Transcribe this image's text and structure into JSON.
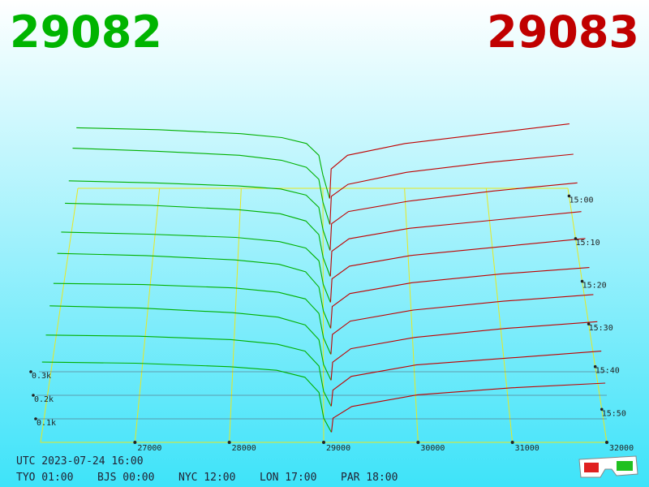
{
  "header": {
    "bid": "29082",
    "ask": "29083"
  },
  "chart_data": {
    "type": "depth3d",
    "bid_color": "#00b000",
    "ask_color": "#c00000",
    "axis_color": "#e8e820",
    "xlim": [
      26000,
      32000
    ],
    "xticks": [
      27000,
      28000,
      29000,
      30000,
      31000,
      32000
    ],
    "depth_ticks": [
      {
        "value": 100,
        "label": "0.1k"
      },
      {
        "value": 200,
        "label": "0.2k"
      },
      {
        "value": 300,
        "label": "0.3k"
      }
    ],
    "time_labels": [
      "15:00",
      "15:10",
      "15:20",
      "15:30",
      "15:40",
      "15:50"
    ],
    "bid_prices": [
      26000,
      27000,
      28000,
      28500,
      28800,
      28950,
      29000,
      29082
    ],
    "ask_prices": [
      29083,
      29100,
      29300,
      30000,
      31000,
      32000
    ],
    "snapshots": [
      {
        "bids": [
          360,
          350,
          330,
          310,
          280,
          220,
          120,
          0
        ],
        "asks": [
          0,
          150,
          220,
          280,
          330,
          380
        ]
      },
      {
        "bids": [
          380,
          365,
          345,
          320,
          285,
          225,
          110,
          0
        ],
        "asks": [
          0,
          140,
          200,
          260,
          310,
          350
        ]
      },
      {
        "bids": [
          340,
          330,
          315,
          300,
          270,
          210,
          100,
          0
        ],
        "asks": [
          0,
          130,
          190,
          240,
          290,
          330
        ]
      },
      {
        "bids": [
          350,
          340,
          320,
          300,
          265,
          200,
          90,
          0
        ],
        "asks": [
          0,
          120,
          180,
          230,
          270,
          310
        ]
      },
      {
        "bids": [
          330,
          320,
          305,
          285,
          255,
          195,
          85,
          0
        ],
        "asks": [
          0,
          110,
          170,
          220,
          260,
          300
        ]
      },
      {
        "bids": [
          345,
          335,
          315,
          295,
          260,
          190,
          80,
          0
        ],
        "asks": [
          0,
          100,
          160,
          210,
          250,
          280
        ]
      },
      {
        "bids": [
          320,
          315,
          300,
          280,
          250,
          185,
          75,
          0
        ],
        "asks": [
          0,
          90,
          150,
          200,
          240,
          270
        ]
      },
      {
        "bids": [
          330,
          320,
          300,
          280,
          245,
          180,
          70,
          0
        ],
        "asks": [
          0,
          80,
          140,
          190,
          230,
          260
        ]
      },
      {
        "bids": [
          310,
          305,
          290,
          270,
          240,
          175,
          65,
          0
        ],
        "asks": [
          0,
          70,
          130,
          180,
          210,
          240
        ]
      },
      {
        "bids": [
          300,
          295,
          280,
          265,
          235,
          170,
          60,
          0
        ],
        "asks": [
          0,
          60,
          110,
          160,
          190,
          210
        ]
      }
    ]
  },
  "clock": {
    "utc": "UTC 2023-07-24 16:00",
    "zones": [
      "TYO 01:00",
      "BJS 00:00",
      "NYC 12:00",
      "LON 17:00",
      "PAR 18:00"
    ]
  }
}
